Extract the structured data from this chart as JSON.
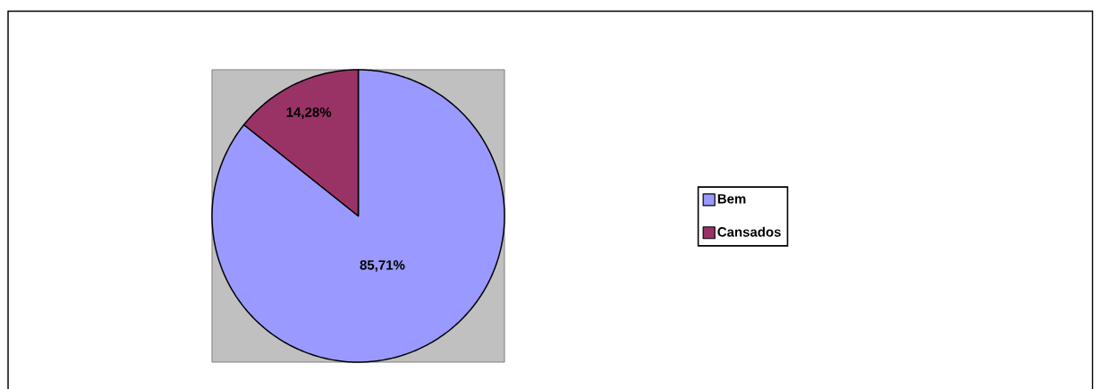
{
  "chart_data": {
    "type": "pie",
    "categories": [
      "Bem",
      "Cansados"
    ],
    "values": [
      85.71,
      14.28
    ],
    "colors": [
      "#9999ff",
      "#993366"
    ],
    "value_labels": [
      "85,71%",
      "14,28%"
    ],
    "legend": "right"
  }
}
